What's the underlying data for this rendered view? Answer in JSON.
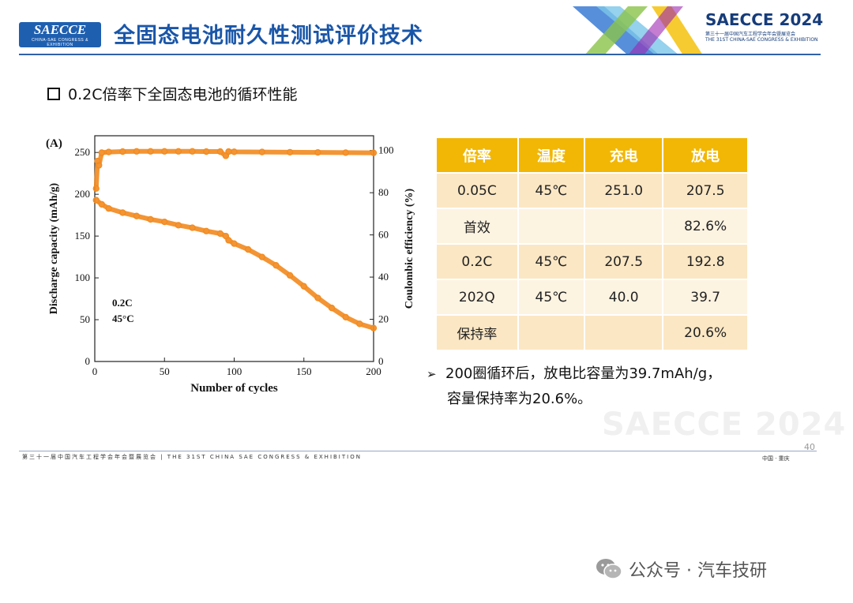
{
  "header": {
    "logo_text": "SAECCE",
    "logo_sub": "CHINA-SAE CONGRESS & EXHIBITION",
    "title": "全固态电池耐久性测试评价技术",
    "event_title": "SAECCE 2024",
    "event_sub_cn": "第三十一届中国汽车工程学会年会暨展览会",
    "event_sub_en": "THE 31ST CHINA-SAE CONGRESS & EXHIBITION",
    "accent": "#1a56a8"
  },
  "section": {
    "heading": "0.2C倍率下全固态电池的循环性能"
  },
  "chart_data": {
    "type": "scatter",
    "panel_label": "(A)",
    "xlabel": "Number of cycles",
    "ylabel_left": "Discharge capacity (mAh/g)",
    "ylabel_right": "Coulombic efficiency (%)",
    "xlim": [
      0,
      200
    ],
    "ylim_left": [
      0,
      270
    ],
    "ylim_right": [
      0,
      107
    ],
    "xticks": [
      0,
      50,
      100,
      150,
      200
    ],
    "yticks_left": [
      0,
      50,
      100,
      150,
      200,
      250
    ],
    "yticks_right": [
      0,
      20,
      40,
      60,
      80,
      100
    ],
    "annotation": [
      "0.2C",
      "45°C"
    ],
    "color": "#f28a1e",
    "series": [
      {
        "axis": "left",
        "x": [
          1,
          5,
          10,
          20,
          30,
          40,
          50,
          60,
          70,
          80,
          90,
          94,
          96,
          100,
          110,
          120,
          130,
          140,
          150,
          160,
          170,
          180,
          190,
          200
        ],
        "values": [
          193,
          188,
          183,
          178,
          174,
          170,
          167,
          163,
          160,
          156,
          153,
          150,
          145,
          141,
          134,
          125,
          115,
          103,
          90,
          76,
          64,
          53,
          45,
          40
        ]
      },
      {
        "axis": "right",
        "x": [
          1,
          2,
          3,
          5,
          10,
          20,
          30,
          40,
          50,
          60,
          70,
          80,
          90,
          94,
          96,
          100,
          120,
          140,
          160,
          180,
          200
        ],
        "values": [
          82,
          95,
          93,
          99.0,
          99.3,
          99.5,
          99.6,
          99.6,
          99.6,
          99.6,
          99.6,
          99.5,
          99.5,
          97.5,
          99.5,
          99.4,
          99.3,
          99.2,
          99.1,
          99.0,
          98.9
        ]
      }
    ]
  },
  "table": {
    "headers": [
      "倍率",
      "温度",
      "充电",
      "放电"
    ],
    "rows": [
      [
        "0.05C",
        "45℃",
        "251.0",
        "207.5"
      ],
      [
        "首效",
        "",
        "",
        "82.6%"
      ],
      [
        "0.2C",
        "45℃",
        "207.5",
        "192.8"
      ],
      [
        "202Q",
        "45℃",
        "40.0",
        "39.7"
      ],
      [
        "保持率",
        "",
        "",
        "20.6%"
      ]
    ],
    "header_color": "#f2b705"
  },
  "note": {
    "line1": "200圈循环后，放电比容量为39.7mAh/g，",
    "line2": "容量保持率为20.6%。"
  },
  "watermark": "SAECCE 2024",
  "page_number": "40",
  "footer": {
    "left": "第三十一届中国汽车工程学会年会暨展览会 | THE 31ST CHINA SAE CONGRESS & EXHIBITION",
    "right": "中国 · 重庆"
  },
  "wechat": {
    "label": "公众号 · 汽车技研"
  }
}
